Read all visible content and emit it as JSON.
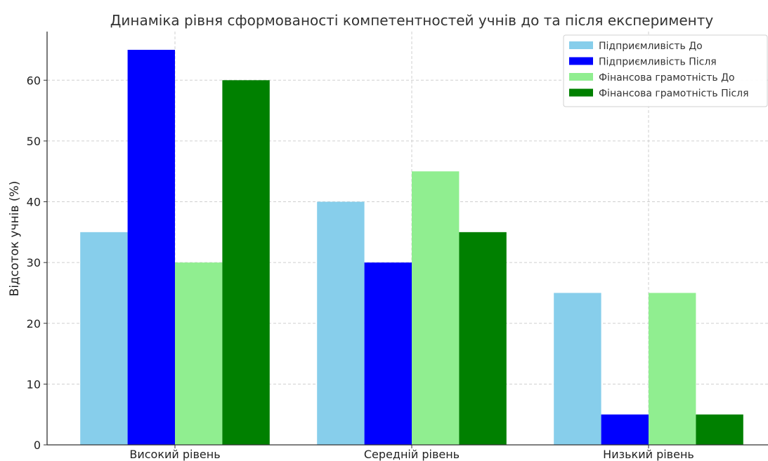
{
  "chart_data": {
    "type": "bar",
    "title": "Динаміка рівня сформованості компетентностей учнів до та після експерименту",
    "xlabel": "",
    "ylabel": "Відсоток учнів (%)",
    "categories": [
      "Високий рівень",
      "Середній рівень",
      "Низький рівень"
    ],
    "ylim": [
      0,
      68
    ],
    "yticks": [
      0,
      10,
      20,
      30,
      40,
      50,
      60
    ],
    "grid": true,
    "legend_position": "top-right",
    "series": [
      {
        "name": "Підприємливість До",
        "color": "#87ceeb",
        "values": [
          35,
          40,
          25
        ]
      },
      {
        "name": "Підприємливість Після",
        "color": "#0000ff",
        "values": [
          65,
          30,
          5
        ]
      },
      {
        "name": "Фінансова грамотність До",
        "color": "#90ee90",
        "values": [
          30,
          45,
          25
        ]
      },
      {
        "name": "Фінансова грамотність Після",
        "color": "#008000",
        "values": [
          60,
          35,
          5
        ]
      }
    ]
  }
}
